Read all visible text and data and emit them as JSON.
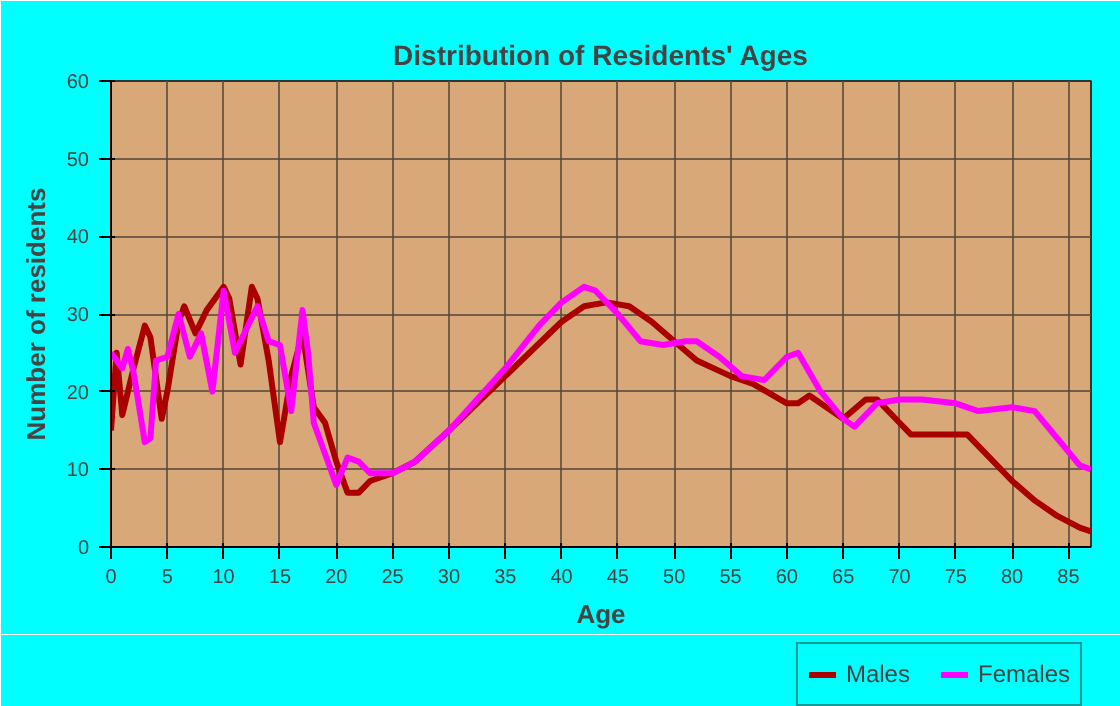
{
  "chart_data": {
    "type": "line",
    "title": "Distribution of Residents' Ages",
    "xlabel": "Age",
    "ylabel": "Number of residents",
    "xlim": [
      0,
      87
    ],
    "ylim": [
      0,
      60
    ],
    "xticks": [
      0,
      5,
      10,
      15,
      20,
      25,
      30,
      35,
      40,
      45,
      50,
      55,
      60,
      65,
      70,
      75,
      80,
      85
    ],
    "yticks": [
      0,
      10,
      20,
      30,
      40,
      50,
      60
    ],
    "grid": true,
    "legend": "bottom right",
    "series": [
      {
        "name": "Males",
        "color": "#aa0000",
        "x": [
          0,
          0.5,
          1,
          2,
          3,
          3.5,
          4.5,
          5,
          6,
          6.5,
          7.5,
          8.5,
          10,
          10.5,
          11.5,
          12.5,
          13,
          14,
          15,
          16,
          17,
          18,
          19,
          20,
          21,
          22,
          23,
          25,
          27,
          30,
          35,
          40,
          42,
          44,
          46,
          48,
          50,
          52,
          55,
          57,
          60,
          61,
          62,
          64,
          65,
          67,
          68,
          70,
          71,
          74,
          76,
          78,
          80,
          82,
          84,
          86,
          87
        ],
        "values": [
          15,
          25,
          17,
          23,
          28.5,
          27,
          16.5,
          20,
          29,
          31,
          27.5,
          30.5,
          33.5,
          32,
          23.5,
          33.5,
          32,
          24,
          13.5,
          22,
          27.5,
          18,
          16,
          11,
          7,
          7,
          8.5,
          9.5,
          11,
          15,
          22,
          29,
          31,
          31.5,
          31,
          29,
          26.5,
          24,
          22,
          21,
          18.5,
          18.5,
          19.5,
          17.5,
          16.5,
          19,
          19,
          16,
          14.5,
          14.5,
          14.5,
          11.5,
          8.5,
          6,
          4,
          2.5,
          2
        ]
      },
      {
        "name": "Females",
        "color": "#ff00ff",
        "x": [
          0,
          0.5,
          1,
          1.5,
          2,
          3,
          3.5,
          4,
          5,
          6,
          7,
          8,
          9,
          10,
          11,
          12,
          13,
          14,
          15,
          16,
          17,
          17.5,
          18,
          19,
          20,
          21,
          22,
          23,
          25,
          27,
          30,
          35,
          38,
          40,
          42,
          43,
          45,
          47,
          49,
          51,
          52,
          54,
          56,
          58,
          60,
          61,
          63,
          65,
          66,
          68,
          70,
          72,
          75,
          77,
          80,
          82,
          84,
          86,
          87
        ],
        "values": [
          25,
          24,
          23,
          25.5,
          22.5,
          13.5,
          14,
          24,
          24.5,
          30,
          24.5,
          27.5,
          20,
          33,
          25,
          28,
          31,
          26.5,
          26,
          17.5,
          30.5,
          25,
          16,
          12,
          8,
          11.5,
          11,
          9.5,
          9.5,
          11,
          15,
          23,
          28.5,
          31.5,
          33.5,
          33,
          30,
          26.5,
          26,
          26.5,
          26.5,
          24.5,
          22,
          21.5,
          24.5,
          25,
          20,
          16.5,
          15.5,
          18.5,
          19,
          19,
          18.5,
          17.5,
          18,
          17.5,
          14,
          10.5,
          10
        ]
      }
    ]
  }
}
